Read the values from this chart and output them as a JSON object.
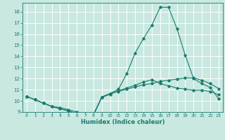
{
  "xlabel": "Humidex (Indice chaleur)",
  "bg_color": "#c8e8e0",
  "grid_color": "#ffffff",
  "line_color": "#1a7a6e",
  "xlim": [
    -0.5,
    23.5
  ],
  "ylim": [
    9.0,
    18.8
  ],
  "yticks": [
    9,
    10,
    11,
    12,
    13,
    14,
    15,
    16,
    17,
    18
  ],
  "xticks": [
    0,
    1,
    2,
    3,
    4,
    5,
    6,
    7,
    8,
    9,
    10,
    11,
    12,
    13,
    14,
    15,
    16,
    17,
    18,
    19,
    20,
    21,
    22,
    23
  ],
  "line1_x": [
    0,
    1,
    2,
    3,
    4,
    5,
    6,
    7,
    8,
    9,
    10,
    11,
    12,
    13,
    14,
    15,
    16,
    17,
    18,
    19,
    20,
    21,
    22,
    23
  ],
  "line1_y": [
    10.4,
    10.1,
    9.8,
    9.5,
    9.3,
    9.1,
    8.85,
    8.8,
    8.7,
    10.35,
    10.65,
    10.85,
    11.05,
    11.25,
    11.45,
    11.55,
    11.75,
    11.85,
    11.95,
    12.05,
    12.05,
    11.85,
    11.55,
    11.1
  ],
  "line2_x": [
    0,
    1,
    2,
    3,
    4,
    5,
    6,
    7,
    8,
    9,
    10,
    11,
    12,
    13,
    14,
    15,
    16,
    17,
    18,
    19,
    20,
    21,
    22,
    23
  ],
  "line2_y": [
    10.4,
    10.1,
    9.8,
    9.5,
    9.4,
    9.2,
    9.0,
    8.9,
    8.8,
    10.3,
    10.6,
    10.9,
    11.15,
    11.4,
    11.7,
    11.9,
    11.55,
    11.35,
    11.15,
    11.05,
    10.95,
    10.95,
    10.85,
    10.55
  ],
  "line3_x": [
    0,
    1,
    2,
    3,
    4,
    5,
    6,
    7,
    8,
    9,
    10,
    11,
    12,
    13,
    14,
    15,
    16,
    17,
    18,
    19,
    20,
    21,
    22,
    23
  ],
  "line3_y": [
    10.4,
    10.1,
    9.8,
    9.5,
    9.3,
    9.1,
    8.85,
    8.8,
    8.7,
    10.35,
    10.65,
    11.05,
    12.45,
    14.3,
    15.6,
    16.8,
    18.4,
    18.4,
    16.5,
    14.1,
    12.0,
    11.55,
    11.2,
    10.2
  ]
}
